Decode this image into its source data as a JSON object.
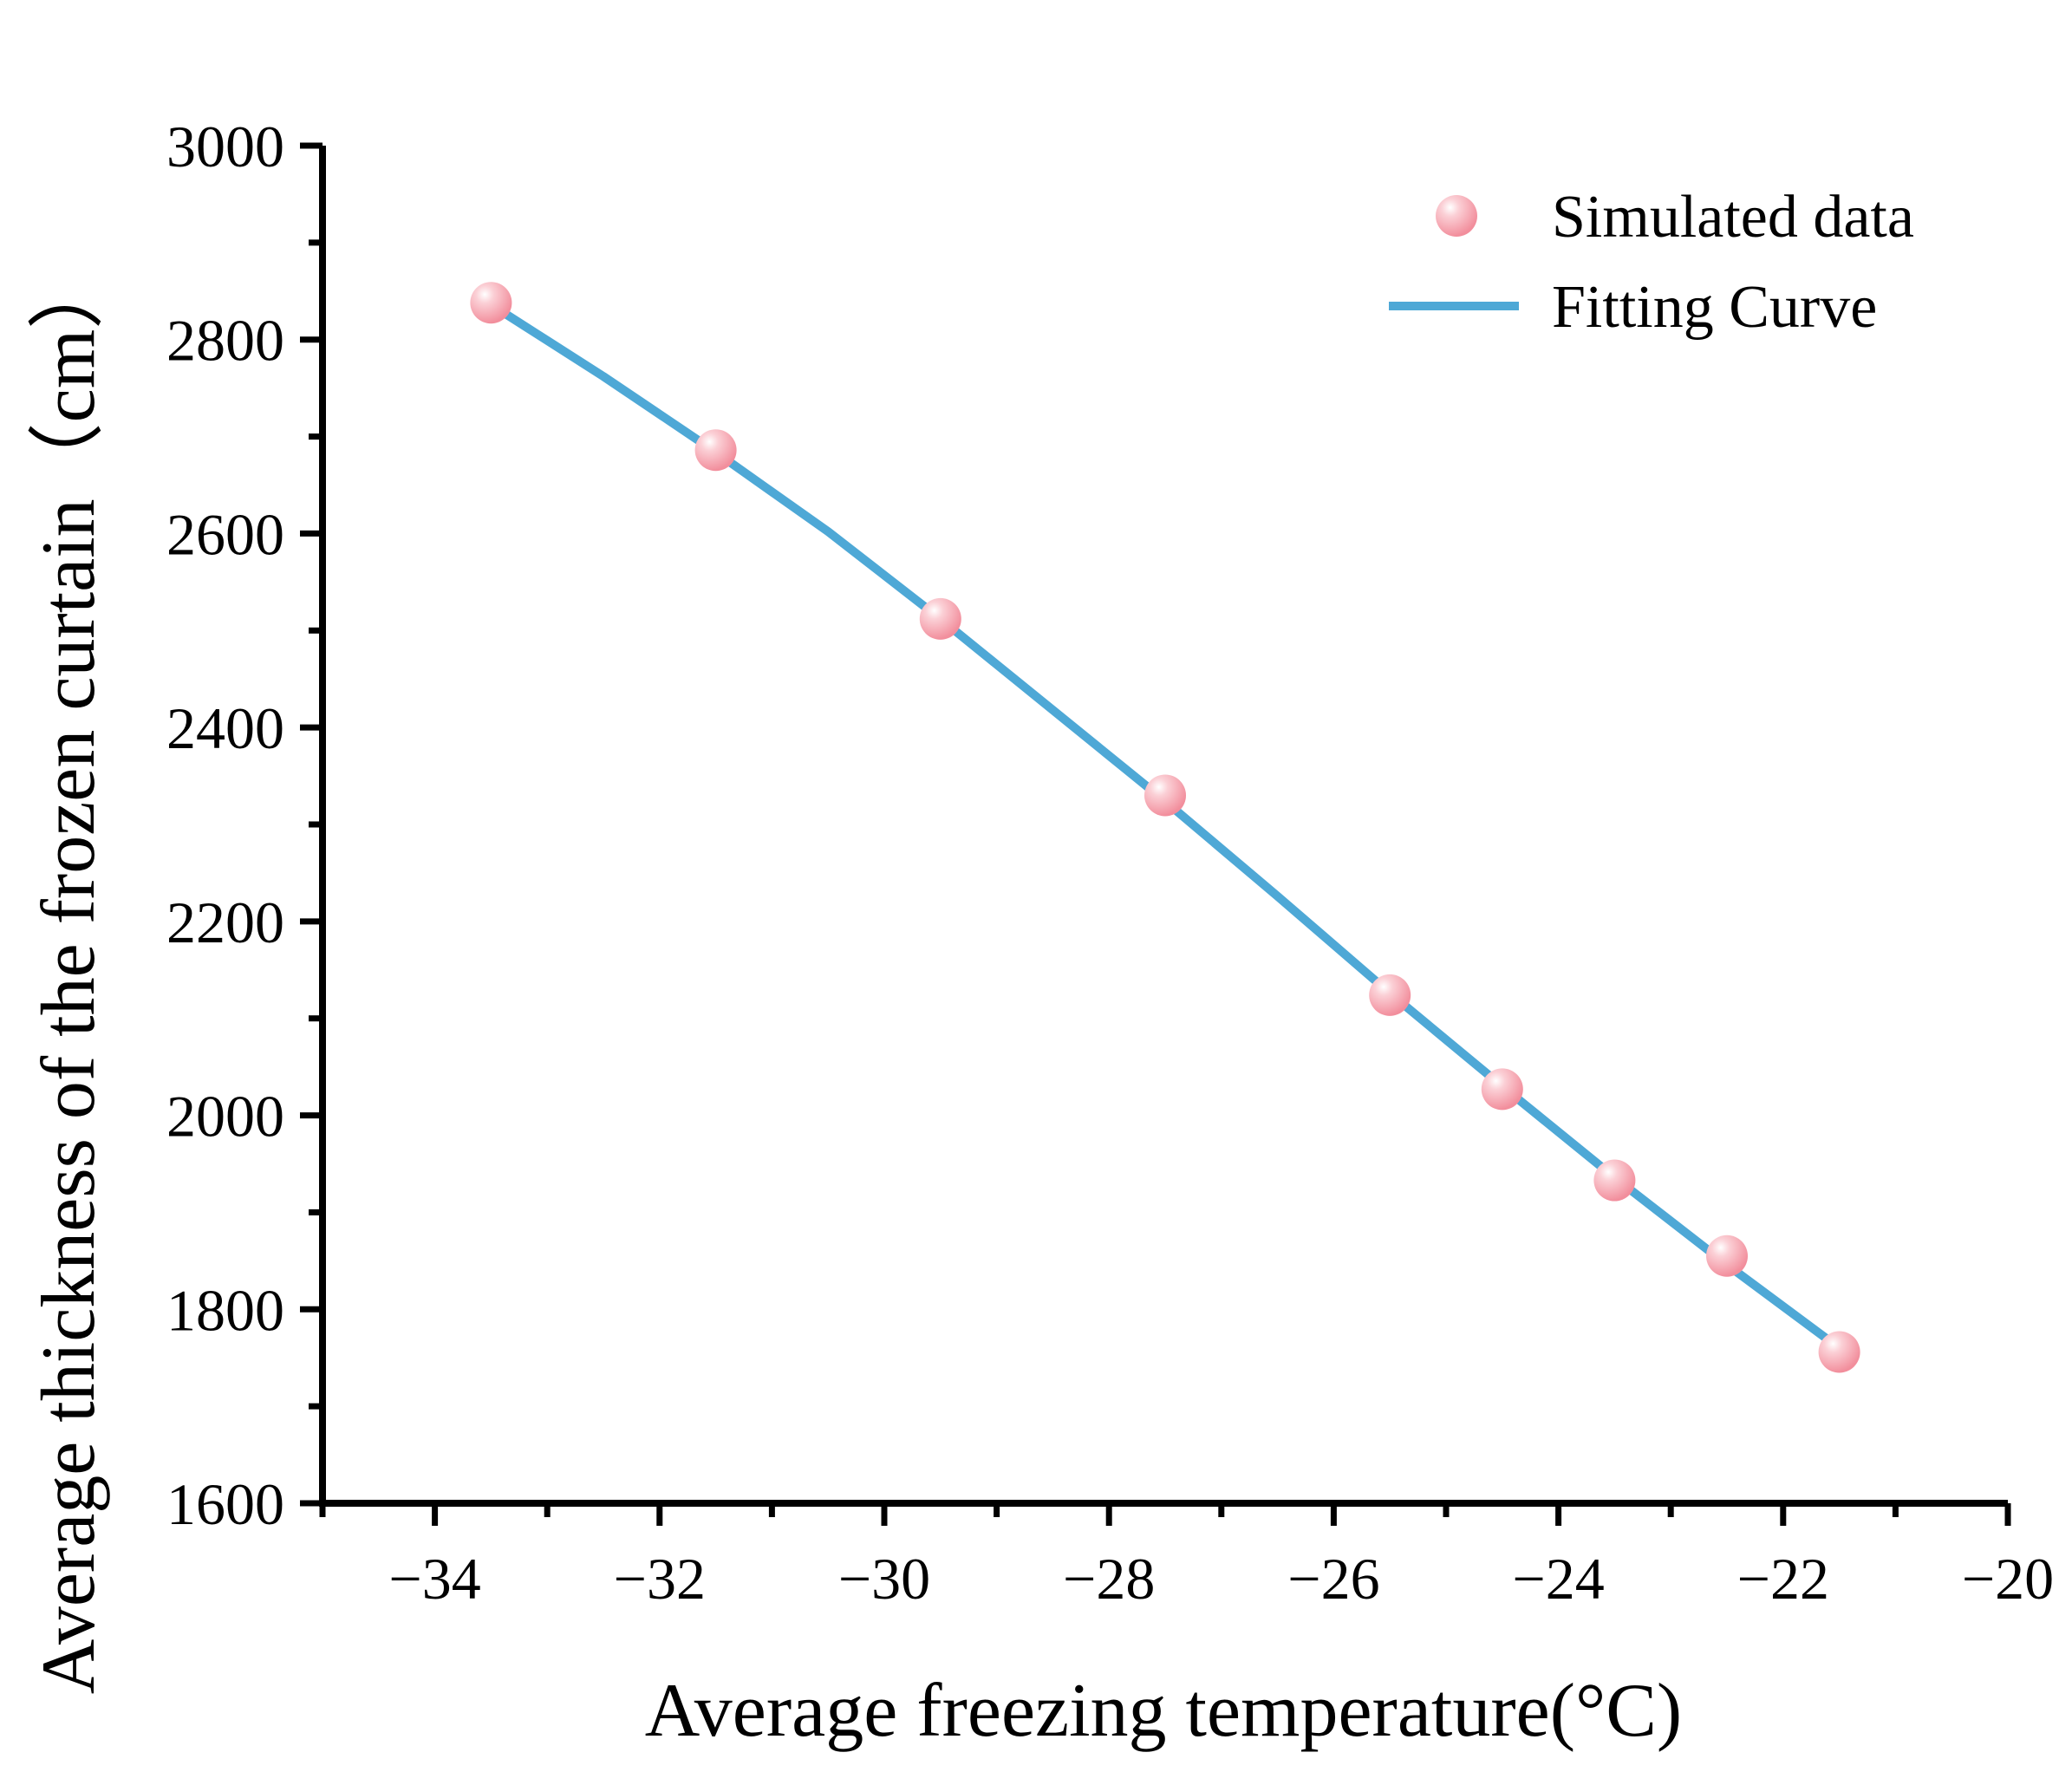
{
  "chart_data": {
    "type": "scatter",
    "title": "",
    "xlabel": "Average freezing temperature(°C)",
    "ylabel": "Average thickness of the frozen curtain（cm）",
    "xlim": [
      -35,
      -20
    ],
    "ylim": [
      1600,
      3000
    ],
    "xticks": [
      -34,
      -32,
      -30,
      -28,
      -26,
      -24,
      -22,
      -20
    ],
    "xtick_labels": [
      "−34",
      "−32",
      "−30",
      "−28",
      "−26",
      "−24",
      "−22",
      "−20"
    ],
    "yticks": [
      1600,
      1800,
      2000,
      2200,
      2400,
      2600,
      2800,
      3000
    ],
    "ytick_labels": [
      "1600",
      "1800",
      "2000",
      "2200",
      "2400",
      "2600",
      "2800",
      "3000"
    ],
    "grid": false,
    "legend_position": "top-right",
    "series": [
      {
        "name": "Simulated data",
        "kind": "scatter",
        "color": "#f4a0ab",
        "x": [
          -33.5,
          -31.5,
          -29.5,
          -27.5,
          -25.5,
          -24.5,
          -23.5,
          -22.5,
          -21.5
        ],
        "y": [
          2838,
          2686,
          2512,
          2330,
          2124,
          2027,
          1933,
          1855,
          1756
        ]
      },
      {
        "name": "Fitting Curve",
        "kind": "line",
        "color": "#4ea8d6",
        "x": [
          -33.5,
          -32.5,
          -31.5,
          -30.5,
          -29.5,
          -28.5,
          -27.5,
          -26.5,
          -25.5,
          -24.5,
          -23.5,
          -22.5,
          -21.5
        ],
        "y": [
          2836,
          2762,
          2684,
          2602,
          2512,
          2418,
          2324,
          2226,
          2126,
          2030,
          1936,
          1846,
          1760
        ]
      }
    ]
  }
}
